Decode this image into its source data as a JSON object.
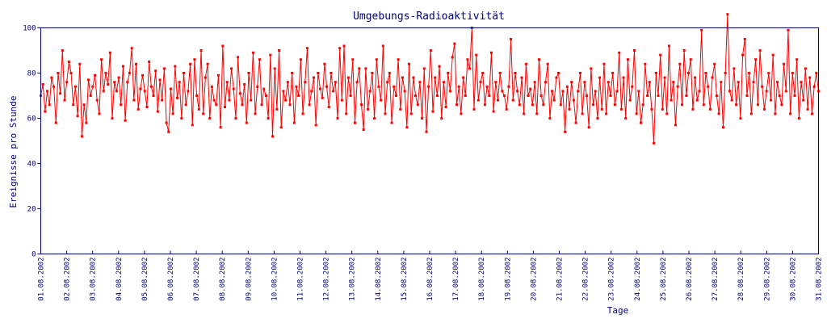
{
  "chart_data": {
    "type": "line",
    "title": "Umgebungs-Radioaktivität",
    "xlabel": "Tage",
    "ylabel": "Ereignisse pro Stunde",
    "ylim": [
      0,
      100
    ],
    "yticks": [
      0,
      20,
      40,
      60,
      80,
      100
    ],
    "xlim_days": [
      0,
      30
    ],
    "xticks": [
      "01.08.2002",
      "02.08.2002",
      "03.08.2002",
      "04.08.2002",
      "05.08.2002",
      "06.08.2002",
      "07.08.2002",
      "08.08.2002",
      "09.08.2002",
      "10.08.2002",
      "11.08.2002",
      "12.08.2002",
      "13.08.2002",
      "14.08.2002",
      "15.08.2002",
      "16.08.2002",
      "17.08.2002",
      "18.08.2002",
      "19.08.2002",
      "20.08.2002",
      "21.08.2002",
      "22.08.2002",
      "23.08.2002",
      "24.08.2002",
      "25.08.2002",
      "26.08.2002",
      "27.08.2002",
      "28.08.2002",
      "29.08.2002",
      "30.08.2002",
      "31.08.2002"
    ],
    "sample_interval_hours": 2,
    "colors": {
      "line": "#ff0000",
      "axis": "#00007f"
    },
    "series": [
      {
        "name": "Ereignisse pro Stunde",
        "values": [
          70,
          75,
          63,
          72,
          66,
          78,
          74,
          58,
          80,
          71,
          90,
          68,
          76,
          85,
          80,
          66,
          74,
          61,
          84,
          52,
          66,
          58,
          77,
          70,
          74,
          79,
          68,
          62,
          86,
          72,
          80,
          75,
          89,
          60,
          76,
          72,
          78,
          66,
          83,
          59,
          76,
          80,
          91,
          68,
          84,
          64,
          73,
          79,
          72,
          65,
          85,
          74,
          70,
          81,
          63,
          77,
          68,
          82,
          58,
          54,
          73,
          62,
          83,
          69,
          76,
          60,
          80,
          66,
          72,
          84,
          57,
          86,
          70,
          64,
          90,
          62,
          78,
          84,
          60,
          74,
          68,
          66,
          79,
          56,
          92,
          65,
          76,
          68,
          82,
          73,
          60,
          87,
          71,
          66,
          75,
          58,
          80,
          68,
          89,
          62,
          74,
          86,
          66,
          73,
          70,
          60,
          88,
          52,
          82,
          64,
          90,
          56,
          72,
          68,
          76,
          66,
          80,
          58,
          74,
          70,
          86,
          62,
          76,
          91,
          66,
          72,
          78,
          57,
          80,
          73,
          69,
          84,
          74,
          65,
          80,
          72,
          76,
          60,
          91,
          68,
          92,
          62,
          78,
          70,
          86,
          58,
          76,
          82,
          66,
          55,
          82,
          64,
          72,
          80,
          60,
          86,
          74,
          68,
          92,
          62,
          76,
          80,
          58,
          74,
          70,
          86,
          64,
          78,
          72,
          56,
          84,
          62,
          78,
          70,
          66,
          76,
          60,
          82,
          54,
          74,
          90,
          63,
          78,
          70,
          83,
          60,
          76,
          65,
          80,
          72,
          87,
          93,
          66,
          74,
          62,
          78,
          70,
          86,
          82,
          100,
          64,
          88,
          68,
          76,
          80,
          66,
          74,
          70,
          89,
          63,
          76,
          68,
          80,
          72,
          70,
          64,
          74,
          95,
          68,
          80,
          72,
          66,
          78,
          62,
          84,
          70,
          73,
          66,
          76,
          62,
          86,
          70,
          66,
          76,
          84,
          60,
          72,
          68,
          78,
          80,
          66,
          72,
          54,
          74,
          64,
          76,
          68,
          58,
          72,
          80,
          62,
          76,
          70,
          56,
          82,
          66,
          72,
          60,
          78,
          64,
          84,
          62,
          76,
          70,
          80,
          66,
          72,
          89,
          64,
          78,
          60,
          86,
          68,
          74,
          90,
          62,
          72,
          58,
          66,
          84,
          70,
          76,
          64,
          49,
          80,
          70,
          88,
          64,
          78,
          62,
          92,
          68,
          76,
          57,
          74,
          84,
          66,
          90,
          70,
          80,
          86,
          64,
          78,
          68,
          72,
          99,
          66,
          80,
          74,
          64,
          78,
          84,
          70,
          62,
          76,
          56,
          80,
          106,
          72,
          68,
          82,
          66,
          76,
          60,
          88,
          95,
          70,
          80,
          62,
          76,
          86,
          66,
          90,
          74,
          64,
          72,
          80,
          68,
          88,
          62,
          76,
          70,
          66,
          84,
          72,
          99,
          62,
          80,
          70,
          86,
          60,
          76,
          68,
          82,
          64,
          78,
          62,
          74,
          80,
          72
        ]
      }
    ]
  }
}
